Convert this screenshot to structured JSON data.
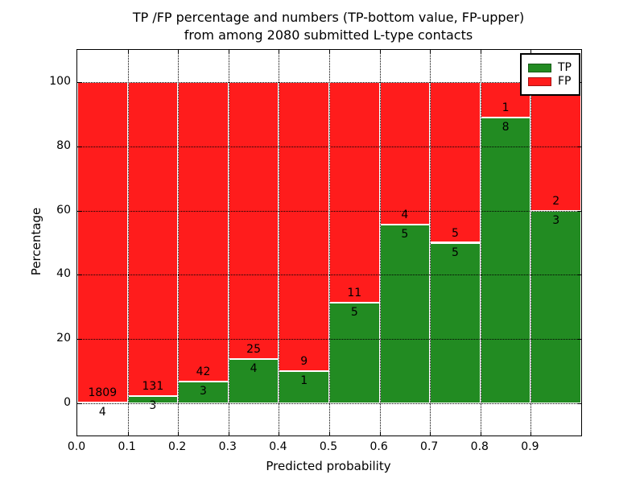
{
  "title": {
    "line1": "TP /FP percentage and numbers (TP-bottom value, FP-upper)",
    "line2": "from among 2080 submitted L-type contacts"
  },
  "axes": {
    "ylabel": "Percentage",
    "xlabel": "Predicted probability",
    "ytick_labels": [
      "0",
      "20",
      "40",
      "60",
      "80",
      "100"
    ],
    "xtick_labels": [
      "0.0",
      "0.1",
      "0.2",
      "0.3",
      "0.4",
      "0.5",
      "0.6",
      "0.7",
      "0.8",
      "0.9"
    ]
  },
  "legend": {
    "items": [
      {
        "label": "TP",
        "color": "#228b22"
      },
      {
        "label": "FP",
        "color": "#ff1c1c"
      }
    ]
  },
  "colors": {
    "tp_green": "#228b22",
    "fp_red": "#ff1c1c",
    "bar_edge": "#ffffff",
    "grid": "#000000"
  },
  "chart_data": {
    "type": "bar",
    "stacked": true,
    "title": "TP /FP percentage and numbers (TP-bottom value, FP-upper) from among 2080 submitted L-type contacts",
    "xlabel": "Predicted probability",
    "ylabel": "Percentage",
    "total_contacts": 2080,
    "xlim": [
      0.0,
      1.0
    ],
    "ylim": [
      -10,
      110
    ],
    "yticks": [
      0,
      20,
      40,
      60,
      80,
      100
    ],
    "xticks": [
      0.0,
      0.1,
      0.2,
      0.3,
      0.4,
      0.5,
      0.6,
      0.7,
      0.8,
      0.9
    ],
    "grid": true,
    "legend_position": "upper right",
    "bin_width": 0.1,
    "bins": [
      {
        "range": "0.0-0.1",
        "tp": 4,
        "fp": 1809,
        "tp_pct": 0.22
      },
      {
        "range": "0.1-0.2",
        "tp": 3,
        "fp": 131,
        "tp_pct": 2.24
      },
      {
        "range": "0.2-0.3",
        "tp": 3,
        "fp": 42,
        "tp_pct": 6.67
      },
      {
        "range": "0.3-0.4",
        "tp": 4,
        "fp": 25,
        "tp_pct": 13.79
      },
      {
        "range": "0.4-0.5",
        "tp": 1,
        "fp": 9,
        "tp_pct": 10.0
      },
      {
        "range": "0.5-0.6",
        "tp": 5,
        "fp": 11,
        "tp_pct": 31.25
      },
      {
        "range": "0.6-0.7",
        "tp": 5,
        "fp": 4,
        "tp_pct": 55.56
      },
      {
        "range": "0.7-0.8",
        "tp": 5,
        "fp": 5,
        "tp_pct": 50.0
      },
      {
        "range": "0.8-0.9",
        "tp": 8,
        "fp": 1,
        "tp_pct": 88.89
      },
      {
        "range": "0.9-1.0",
        "tp": 3,
        "fp": 2,
        "tp_pct": 60.0
      }
    ]
  }
}
